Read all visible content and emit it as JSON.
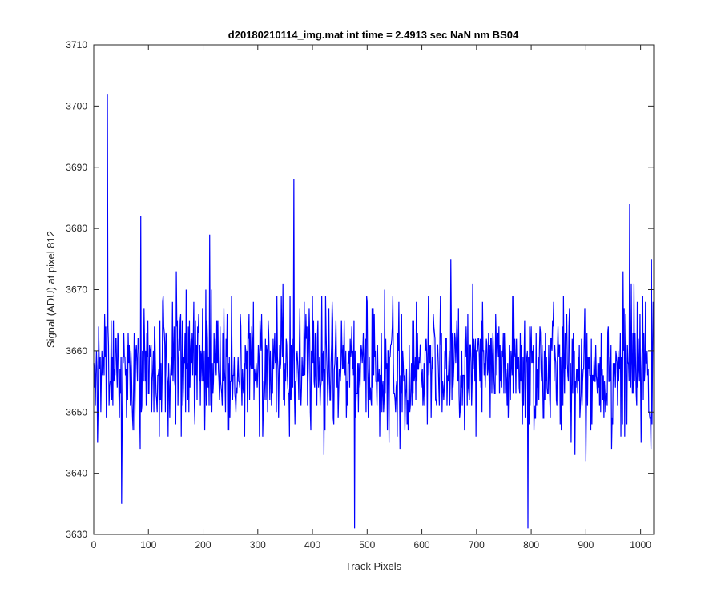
{
  "figure": {
    "background": "#ffffff"
  },
  "chart_data": {
    "type": "line",
    "title": "d20180210114_img.mat int time = 2.4913 sec  NaN nm BS04",
    "xlabel": "Track Pixels",
    "ylabel": "Signal (ADU) at pixel 812",
    "xlim": [
      0,
      1024
    ],
    "ylim": [
      3630,
      3710
    ],
    "xticks": [
      0,
      100,
      200,
      300,
      400,
      500,
      600,
      700,
      800,
      900,
      1000
    ],
    "yticks": [
      3630,
      3640,
      3650,
      3660,
      3670,
      3680,
      3690,
      3700,
      3710
    ],
    "grid": false,
    "series": [
      {
        "color": "#0000ff",
        "generator": "noise",
        "n_points": 1024,
        "baseline": 3657,
        "spread": 5.5,
        "spikes": [
          {
            "x": 25,
            "y": 3702
          },
          {
            "x": 51,
            "y": 3635
          },
          {
            "x": 86,
            "y": 3682
          },
          {
            "x": 212,
            "y": 3679
          },
          {
            "x": 366,
            "y": 3688
          },
          {
            "x": 477,
            "y": 3631
          },
          {
            "x": 794,
            "y": 3631
          },
          {
            "x": 980,
            "y": 3684
          }
        ]
      }
    ]
  }
}
